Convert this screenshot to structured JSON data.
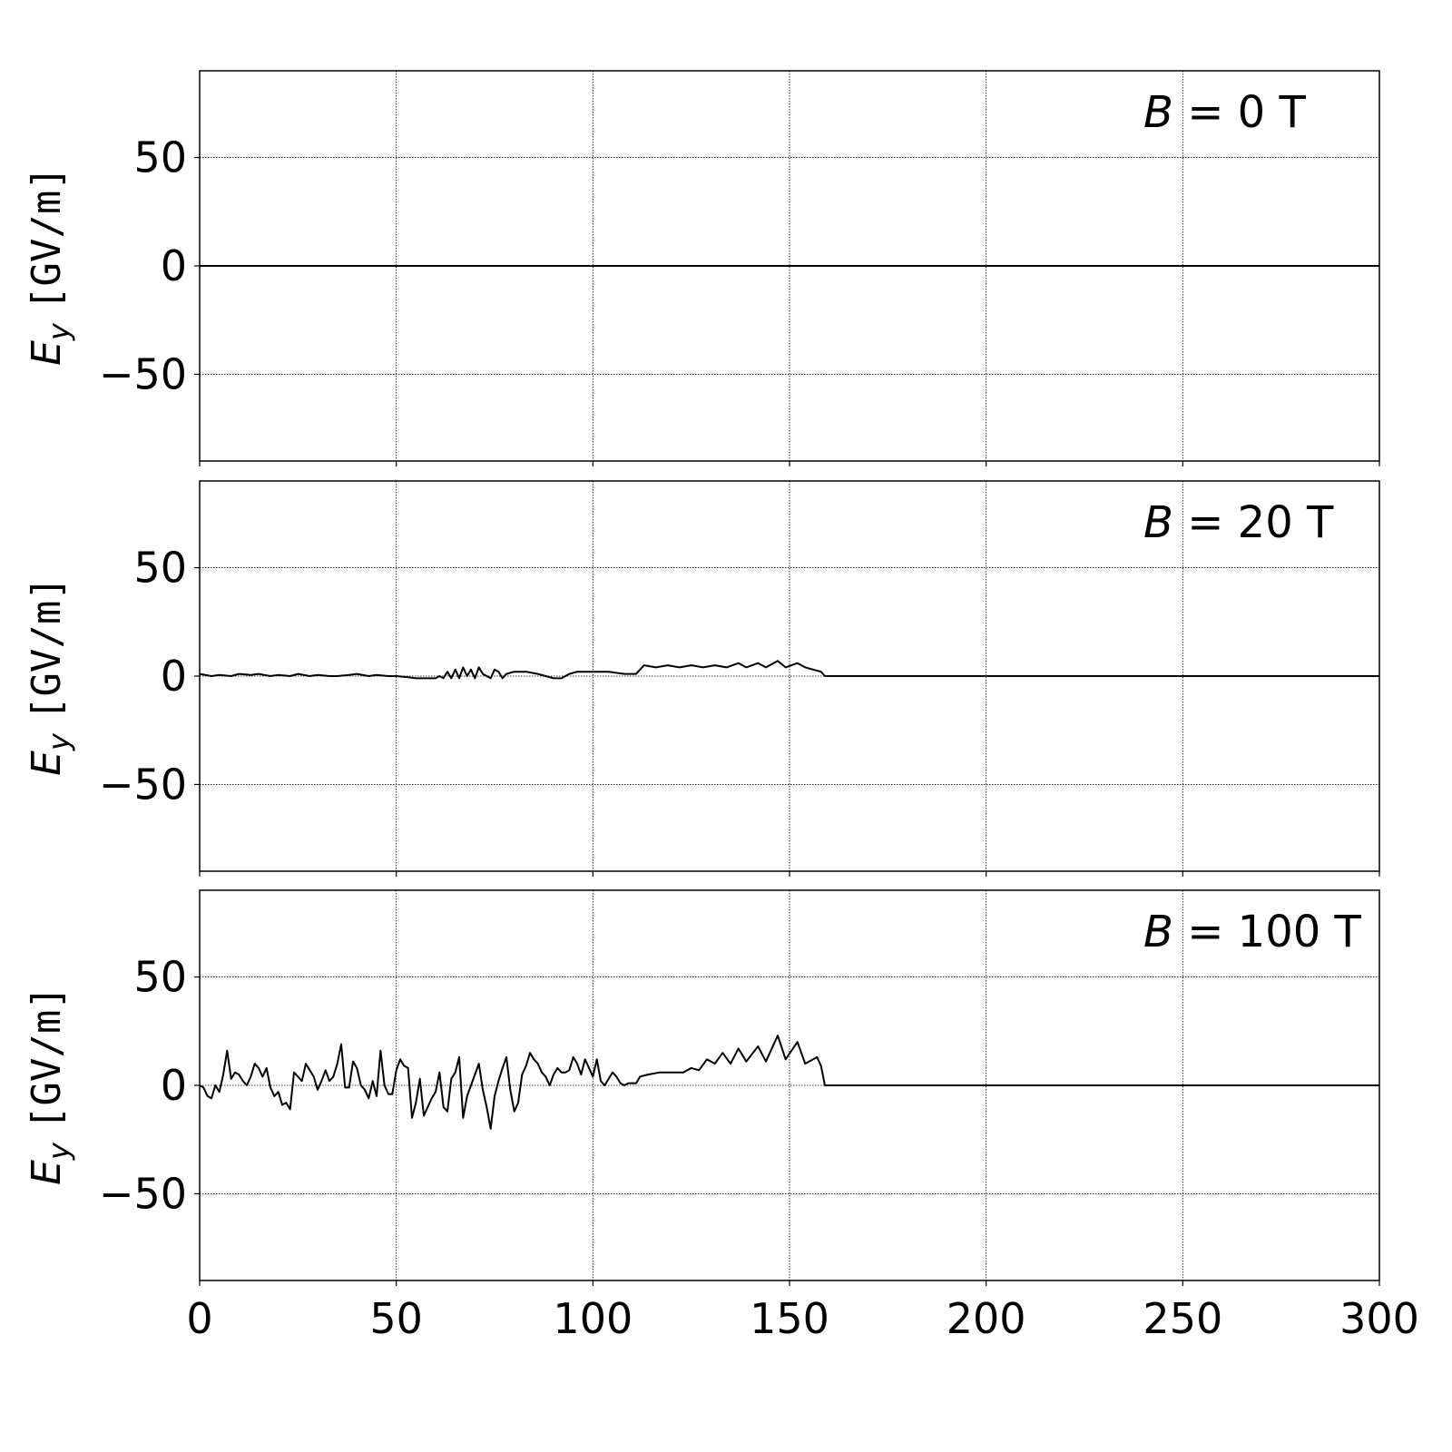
{
  "chart_data": [
    {
      "type": "line",
      "annotation": {
        "var": "B",
        "text": " = 0 T"
      },
      "ylabel": {
        "symbol": "E",
        "subscript": "y",
        "unit": "[GV/m]"
      },
      "xlim": [
        0,
        300
      ],
      "ylim": [
        -90,
        90
      ],
      "yticks": [
        50,
        0,
        -50
      ],
      "xticks": [
        0,
        50,
        100,
        150,
        200,
        250,
        300
      ],
      "show_xticklabels": false,
      "grid": true,
      "line_color": "#000000",
      "points": [
        [
          0,
          0
        ],
        [
          300,
          0
        ]
      ]
    },
    {
      "type": "line",
      "annotation": {
        "var": "B",
        "text": " = 20 T"
      },
      "ylabel": {
        "symbol": "E",
        "subscript": "y",
        "unit": "[GV/m]"
      },
      "xlim": [
        0,
        300
      ],
      "ylim": [
        -90,
        90
      ],
      "yticks": [
        50,
        0,
        -50
      ],
      "xticks": [
        0,
        50,
        100,
        150,
        200,
        250,
        300
      ],
      "show_xticklabels": false,
      "grid": true,
      "line_color": "#000000",
      "points": [
        [
          0,
          1
        ],
        [
          3,
          0
        ],
        [
          5,
          0.5
        ],
        [
          8,
          0
        ],
        [
          10,
          1
        ],
        [
          13,
          0.5
        ],
        [
          15,
          1
        ],
        [
          18,
          0
        ],
        [
          20,
          0.5
        ],
        [
          23,
          0
        ],
        [
          25,
          1
        ],
        [
          28,
          0
        ],
        [
          30,
          0.5
        ],
        [
          33,
          0
        ],
        [
          35,
          0
        ],
        [
          38,
          0.5
        ],
        [
          40,
          1
        ],
        [
          43,
          0
        ],
        [
          45,
          0.5
        ],
        [
          48,
          0
        ],
        [
          50,
          0
        ],
        [
          53,
          -0.5
        ],
        [
          55,
          -1
        ],
        [
          58,
          -1
        ],
        [
          60,
          -1
        ],
        [
          61,
          0
        ],
        [
          62,
          -1
        ],
        [
          63,
          2
        ],
        [
          64,
          -1
        ],
        [
          65,
          3
        ],
        [
          66,
          -1
        ],
        [
          67,
          4
        ],
        [
          68,
          0
        ],
        [
          69,
          3
        ],
        [
          70,
          -1
        ],
        [
          71,
          4
        ],
        [
          72,
          1
        ],
        [
          73,
          0
        ],
        [
          74,
          -1
        ],
        [
          75,
          3
        ],
        [
          76,
          2
        ],
        [
          77,
          -1
        ],
        [
          78,
          1
        ],
        [
          80,
          2
        ],
        [
          83,
          2
        ],
        [
          86,
          1
        ],
        [
          88,
          0
        ],
        [
          90,
          -1
        ],
        [
          92,
          -1
        ],
        [
          94,
          1
        ],
        [
          96,
          2
        ],
        [
          100,
          2
        ],
        [
          104,
          2
        ],
        [
          108,
          1
        ],
        [
          111,
          1
        ],
        [
          112,
          3
        ],
        [
          113,
          5
        ],
        [
          116,
          4
        ],
        [
          119,
          5
        ],
        [
          122,
          4
        ],
        [
          125,
          5
        ],
        [
          128,
          4
        ],
        [
          131,
          5
        ],
        [
          134,
          4
        ],
        [
          137,
          6
        ],
        [
          139,
          4
        ],
        [
          142,
          6
        ],
        [
          144,
          4
        ],
        [
          147,
          7
        ],
        [
          149,
          4
        ],
        [
          152,
          6
        ],
        [
          154,
          4
        ],
        [
          156,
          3
        ],
        [
          158,
          2
        ],
        [
          159,
          0
        ],
        [
          300,
          0
        ]
      ]
    },
    {
      "type": "line",
      "annotation": {
        "var": "B",
        "text": " = 100 T"
      },
      "ylabel": {
        "symbol": "E",
        "subscript": "y",
        "unit": "[GV/m]"
      },
      "xlim": [
        0,
        300
      ],
      "ylim": [
        -90,
        90
      ],
      "yticks": [
        50,
        0,
        -50
      ],
      "xticks": [
        0,
        50,
        100,
        150,
        200,
        250,
        300
      ],
      "show_xticklabels": true,
      "grid": true,
      "line_color": "#000000",
      "points": [
        [
          0,
          0
        ],
        [
          1,
          -1
        ],
        [
          2,
          -5
        ],
        [
          3,
          -6
        ],
        [
          4,
          0
        ],
        [
          5,
          -3
        ],
        [
          6,
          5
        ],
        [
          7,
          16
        ],
        [
          8,
          3
        ],
        [
          9,
          6
        ],
        [
          10,
          5
        ],
        [
          11,
          2
        ],
        [
          12,
          0
        ],
        [
          13,
          4
        ],
        [
          14,
          10
        ],
        [
          15,
          8
        ],
        [
          16,
          4
        ],
        [
          17,
          8
        ],
        [
          18,
          -1
        ],
        [
          19,
          -5
        ],
        [
          20,
          -3
        ],
        [
          21,
          -9
        ],
        [
          22,
          -8
        ],
        [
          23,
          -11
        ],
        [
          24,
          6
        ],
        [
          25,
          4
        ],
        [
          26,
          2
        ],
        [
          27,
          10
        ],
        [
          28,
          7
        ],
        [
          29,
          4
        ],
        [
          30,
          -2
        ],
        [
          31,
          2
        ],
        [
          32,
          7
        ],
        [
          33,
          2
        ],
        [
          34,
          4
        ],
        [
          35,
          10
        ],
        [
          36,
          19
        ],
        [
          37,
          -1
        ],
        [
          38,
          -1
        ],
        [
          39,
          11
        ],
        [
          40,
          8
        ],
        [
          41,
          0
        ],
        [
          42,
          -2
        ],
        [
          43,
          -6
        ],
        [
          44,
          2
        ],
        [
          45,
          -5
        ],
        [
          46,
          16
        ],
        [
          47,
          0
        ],
        [
          48,
          -4
        ],
        [
          49,
          -4
        ],
        [
          50,
          7
        ],
        [
          51,
          12
        ],
        [
          52,
          9
        ],
        [
          53,
          8
        ],
        [
          54,
          -15
        ],
        [
          55,
          -8
        ],
        [
          56,
          3
        ],
        [
          57,
          -14
        ],
        [
          58,
          -10
        ],
        [
          59,
          -6
        ],
        [
          60,
          -3
        ],
        [
          61,
          6
        ],
        [
          62,
          -10
        ],
        [
          63,
          -12
        ],
        [
          64,
          3
        ],
        [
          65,
          6
        ],
        [
          66,
          13
        ],
        [
          67,
          -15
        ],
        [
          68,
          -5
        ],
        [
          69,
          0
        ],
        [
          70,
          5
        ],
        [
          71,
          10
        ],
        [
          72,
          -2
        ],
        [
          73,
          -10
        ],
        [
          74,
          -20
        ],
        [
          75,
          -5
        ],
        [
          76,
          2
        ],
        [
          77,
          8
        ],
        [
          78,
          13
        ],
        [
          79,
          -2
        ],
        [
          80,
          -12
        ],
        [
          81,
          -8
        ],
        [
          82,
          5
        ],
        [
          83,
          9
        ],
        [
          84,
          15
        ],
        [
          85,
          12
        ],
        [
          86,
          10
        ],
        [
          87,
          6
        ],
        [
          88,
          4
        ],
        [
          89,
          0
        ],
        [
          90,
          5
        ],
        [
          91,
          8
        ],
        [
          92,
          6
        ],
        [
          93,
          6
        ],
        [
          94,
          7
        ],
        [
          95,
          13
        ],
        [
          96,
          10
        ],
        [
          97,
          5
        ],
        [
          98,
          12
        ],
        [
          99,
          8
        ],
        [
          100,
          4
        ],
        [
          101,
          12
        ],
        [
          102,
          2
        ],
        [
          103,
          0
        ],
        [
          104,
          3
        ],
        [
          105,
          6
        ],
        [
          106,
          4
        ],
        [
          107,
          1
        ],
        [
          108,
          0
        ],
        [
          109,
          1
        ],
        [
          110,
          1
        ],
        [
          111,
          1
        ],
        [
          112,
          4
        ],
        [
          114,
          5
        ],
        [
          117,
          6
        ],
        [
          120,
          6
        ],
        [
          123,
          6
        ],
        [
          125,
          8
        ],
        [
          127,
          7
        ],
        [
          129,
          12
        ],
        [
          131,
          10
        ],
        [
          133,
          15
        ],
        [
          135,
          10
        ],
        [
          137,
          17
        ],
        [
          139,
          11
        ],
        [
          142,
          18
        ],
        [
          144,
          11
        ],
        [
          147,
          23
        ],
        [
          149,
          12
        ],
        [
          152,
          20
        ],
        [
          154,
          10
        ],
        [
          157,
          13
        ],
        [
          158,
          9
        ],
        [
          159,
          0
        ],
        [
          300,
          0
        ]
      ]
    }
  ]
}
